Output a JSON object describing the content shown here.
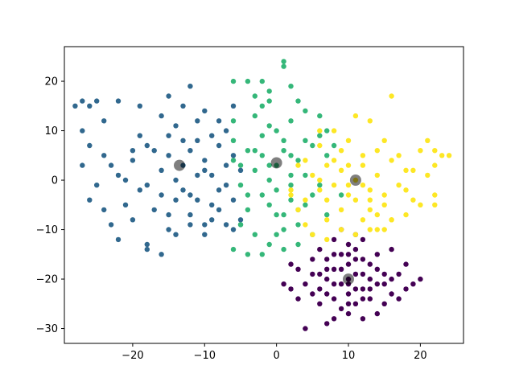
{
  "chart_data": {
    "type": "scatter",
    "title": "",
    "xlabel": "",
    "ylabel": "",
    "xlim": [
      -29.5,
      26.0
    ],
    "ylim": [
      -33.0,
      27.0
    ],
    "xticks": [
      -20,
      -10,
      0,
      10,
      20
    ],
    "yticks": [
      -30,
      -20,
      -10,
      0,
      10,
      20
    ],
    "xtick_labels": [
      "−20",
      "−10",
      "0",
      "10",
      "20"
    ],
    "ytick_labels": [
      "−30",
      "−20",
      "−10",
      "0",
      "10",
      "20"
    ],
    "grid": false,
    "legend": "none",
    "series": [
      {
        "color": "#440154",
        "points": [
          [
            10,
            -20
          ],
          [
            8,
            -18
          ],
          [
            12,
            -22
          ],
          [
            9,
            -21
          ],
          [
            11,
            -19
          ],
          [
            7,
            -20
          ],
          [
            13,
            -20
          ],
          [
            10,
            -23
          ],
          [
            10,
            -17
          ],
          [
            6,
            -22
          ],
          [
            14,
            -18
          ],
          [
            8,
            -24
          ],
          [
            12,
            -16
          ],
          [
            5,
            -19
          ],
          [
            15,
            -21
          ],
          [
            9,
            -26
          ],
          [
            11,
            -14
          ],
          [
            4,
            -21
          ],
          [
            16,
            -23
          ],
          [
            7,
            -16
          ],
          [
            13,
            -24
          ],
          [
            3,
            -18
          ],
          [
            17,
            -19
          ],
          [
            10,
            -27
          ],
          [
            10,
            -13
          ],
          [
            6,
            -25
          ],
          [
            14,
            -15
          ],
          [
            2,
            -22
          ],
          [
            18,
            -17
          ],
          [
            8,
            -12
          ],
          [
            12,
            -28
          ],
          [
            1,
            -21
          ],
          [
            19,
            -21
          ],
          [
            5,
            -16
          ],
          [
            15,
            -25
          ],
          [
            4,
            -30
          ],
          [
            7,
            -29
          ],
          [
            11,
            -11
          ],
          [
            9,
            -10
          ],
          [
            14,
            -27
          ],
          [
            17,
            -24
          ],
          [
            3,
            -24
          ],
          [
            20,
            -20
          ],
          [
            6,
            -14
          ],
          [
            12,
            -12
          ],
          [
            8,
            -28
          ],
          [
            16,
            -14
          ],
          [
            2,
            -17
          ],
          [
            18,
            -22
          ],
          [
            10,
            -15
          ],
          [
            9,
            -18
          ],
          [
            11,
            -22
          ],
          [
            13,
            -17
          ],
          [
            7,
            -23
          ],
          [
            10,
            -21
          ],
          [
            12,
            -19
          ],
          [
            8,
            -21
          ],
          [
            11,
            -25
          ],
          [
            9,
            -15
          ],
          [
            13,
            -22
          ],
          [
            15,
            -19
          ],
          [
            5,
            -23
          ],
          [
            7,
            -18
          ],
          [
            14,
            -21
          ],
          [
            6,
            -19
          ],
          [
            12,
            -24
          ],
          [
            10,
            -25
          ],
          [
            11,
            -16
          ],
          [
            8,
            -15
          ],
          [
            16,
            -20
          ]
        ]
      },
      {
        "color": "#31688e",
        "points": [
          [
            -13,
            3
          ],
          [
            -15,
            5
          ],
          [
            -11,
            1
          ],
          [
            -14,
            0
          ],
          [
            -12,
            6
          ],
          [
            -16,
            2
          ],
          [
            -10,
            4
          ],
          [
            -13,
            -2
          ],
          [
            -17,
            6
          ],
          [
            -9,
            1
          ],
          [
            -15,
            9
          ],
          [
            -11,
            -4
          ],
          [
            -18,
            -1
          ],
          [
            -8,
            7
          ],
          [
            -14,
            11
          ],
          [
            -12,
            -7
          ],
          [
            -20,
            4
          ],
          [
            -7,
            -1
          ],
          [
            -16,
            13
          ],
          [
            -10,
            -9
          ],
          [
            -22,
            1
          ],
          [
            -6,
            5
          ],
          [
            -19,
            9
          ],
          [
            -9,
            -5
          ],
          [
            -24,
            5
          ],
          [
            -5,
            2
          ],
          [
            -17,
            -6
          ],
          [
            -11,
            12
          ],
          [
            -25,
            -1
          ],
          [
            -6,
            -4
          ],
          [
            -21,
            -5
          ],
          [
            -13,
            15
          ],
          [
            -27,
            3
          ],
          [
            -7,
            10
          ],
          [
            -23,
            -9
          ],
          [
            -14,
            -11
          ],
          [
            -26,
            15
          ],
          [
            -27,
            16
          ],
          [
            -25,
            16
          ],
          [
            -28,
            15
          ],
          [
            -27,
            10
          ],
          [
            -26,
            7
          ],
          [
            -24,
            12
          ],
          [
            -22,
            16
          ],
          [
            -19,
            15
          ],
          [
            -15,
            17
          ],
          [
            -12,
            19
          ],
          [
            -10,
            14
          ],
          [
            -8,
            12
          ],
          [
            -6,
            15
          ],
          [
            -22,
            -12
          ],
          [
            -18,
            -13
          ],
          [
            -16,
            -15
          ],
          [
            -18,
            -14
          ],
          [
            -20,
            -8
          ],
          [
            -24,
            -6
          ],
          [
            -26,
            -4
          ],
          [
            -8,
            -6
          ],
          [
            -7,
            -9
          ],
          [
            -9,
            -8
          ],
          [
            -12,
            -9
          ],
          [
            -15,
            -10
          ],
          [
            -10,
            -11
          ],
          [
            -6,
            -10
          ],
          [
            -5,
            -8
          ],
          [
            -14,
            -4
          ],
          [
            -16,
            -3
          ],
          [
            -19,
            -2
          ],
          [
            -21,
            0
          ],
          [
            -23,
            3
          ],
          [
            -11,
            8
          ],
          [
            -9,
            9
          ],
          [
            -7,
            3
          ],
          [
            -12,
            -3
          ],
          [
            -18,
            7
          ],
          [
            -20,
            6
          ],
          [
            -13,
            8
          ],
          [
            -15,
            -7
          ],
          [
            -8,
            -2
          ],
          [
            -10,
            2
          ]
        ]
      },
      {
        "color": "#35b779",
        "points": [
          [
            0,
            3
          ],
          [
            -2,
            5
          ],
          [
            2,
            1
          ],
          [
            -1,
            0
          ],
          [
            1,
            6
          ],
          [
            -3,
            2
          ],
          [
            3,
            4
          ],
          [
            0,
            -2
          ],
          [
            -4,
            6
          ],
          [
            4,
            1
          ],
          [
            -2,
            9
          ],
          [
            2,
            -4
          ],
          [
            -5,
            -1
          ],
          [
            5,
            7
          ],
          [
            -1,
            11
          ],
          [
            1,
            -7
          ],
          [
            -6,
            4
          ],
          [
            6,
            -1
          ],
          [
            -3,
            13
          ],
          [
            3,
            -9
          ],
          [
            -6,
            8
          ],
          [
            7,
            5
          ],
          [
            -4,
            -6
          ],
          [
            2,
            12
          ],
          [
            -5,
            -9
          ],
          [
            4,
            -5
          ],
          [
            -2,
            15
          ],
          [
            0,
            -11
          ],
          [
            -6,
            12
          ],
          [
            6,
            9
          ],
          [
            -1,
            18
          ],
          [
            2,
            19
          ],
          [
            1,
            23
          ],
          [
            1,
            24
          ],
          [
            -3,
            17
          ],
          [
            -4,
            20
          ],
          [
            -6,
            20
          ],
          [
            -2,
            20
          ],
          [
            -1,
            16
          ],
          [
            3,
            16
          ],
          [
            4,
            14
          ],
          [
            6,
            13
          ],
          [
            7,
            10
          ],
          [
            8,
            7
          ],
          [
            9,
            -3
          ],
          [
            7,
            -7
          ],
          [
            5,
            -11
          ],
          [
            3,
            -13
          ],
          [
            1,
            -14
          ],
          [
            -1,
            -13
          ],
          [
            -3,
            -11
          ],
          [
            -5,
            -9
          ],
          [
            -6,
            -14
          ],
          [
            -4,
            -15
          ],
          [
            -2,
            -15
          ],
          [
            1,
            -10
          ],
          [
            0,
            -7
          ],
          [
            -4,
            -3
          ],
          [
            5,
            -3
          ],
          [
            -1,
            3
          ],
          [
            1,
            8
          ],
          [
            -3,
            6
          ],
          [
            2,
            -1
          ],
          [
            -2,
            -3
          ],
          [
            4,
            8
          ],
          [
            -5,
            3
          ],
          [
            3,
            -6
          ],
          [
            0,
            10
          ],
          [
            -1,
            -5
          ],
          [
            2,
            5
          ]
        ]
      },
      {
        "color": "#fde725",
        "points": [
          [
            11,
            0
          ],
          [
            9,
            2
          ],
          [
            13,
            -2
          ],
          [
            10,
            -1
          ],
          [
            12,
            3
          ],
          [
            8,
            -1
          ],
          [
            14,
            1
          ],
          [
            11,
            -4
          ],
          [
            7,
            3
          ],
          [
            15,
            -3
          ],
          [
            9,
            6
          ],
          [
            13,
            -6
          ],
          [
            6,
            -2
          ],
          [
            16,
            4
          ],
          [
            10,
            8
          ],
          [
            12,
            -8
          ],
          [
            5,
            1
          ],
          [
            17,
            -1
          ],
          [
            8,
            10
          ],
          [
            14,
            -10
          ],
          [
            4,
            -4
          ],
          [
            18,
            2
          ],
          [
            7,
            -8
          ],
          [
            15,
            8
          ],
          [
            3,
            3
          ],
          [
            19,
            -4
          ],
          [
            6,
            10
          ],
          [
            16,
            -8
          ],
          [
            2,
            -2
          ],
          [
            20,
            6
          ],
          [
            11,
            13
          ],
          [
            13,
            12
          ],
          [
            16,
            17
          ],
          [
            21,
            8
          ],
          [
            22,
            6
          ],
          [
            23,
            5
          ],
          [
            24,
            5
          ],
          [
            22,
            3
          ],
          [
            21,
            1
          ],
          [
            22,
            -3
          ],
          [
            22,
            -5
          ],
          [
            20,
            -5
          ],
          [
            18,
            -7
          ],
          [
            16,
            -8
          ],
          [
            15,
            -10
          ],
          [
            13,
            -10
          ],
          [
            11,
            -11
          ],
          [
            9,
            -10
          ],
          [
            7,
            -12
          ],
          [
            5,
            -11
          ],
          [
            4,
            -9
          ],
          [
            3,
            -6
          ],
          [
            2,
            -3
          ],
          [
            4,
            4
          ],
          [
            6,
            7
          ],
          [
            8,
            4
          ],
          [
            10,
            3
          ],
          [
            12,
            5
          ],
          [
            14,
            6
          ],
          [
            17,
            5
          ],
          [
            19,
            2
          ],
          [
            18,
            -2
          ],
          [
            15,
            -5
          ],
          [
            13,
            -4
          ],
          [
            9,
            -6
          ],
          [
            7,
            -4
          ],
          [
            6,
            0
          ],
          [
            10,
            -3
          ],
          [
            12,
            -1
          ],
          [
            14,
            -7
          ]
        ]
      }
    ],
    "centroids": {
      "color": "#000000",
      "points": [
        [
          10,
          -20
        ],
        [
          -13.5,
          3
        ],
        [
          0,
          3.5
        ],
        [
          11,
          0
        ]
      ]
    }
  }
}
